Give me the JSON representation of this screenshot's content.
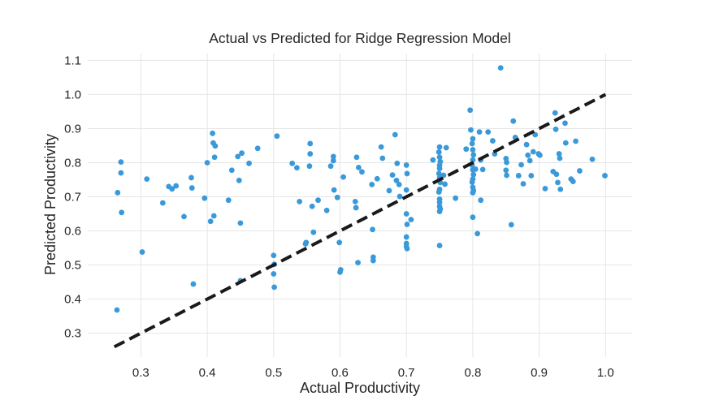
{
  "chart_data": {
    "type": "scatter",
    "title": "Actual vs Predicted for Ridge Regression Model",
    "xlabel": "Actual Productivity",
    "ylabel": "Predicted Productivity",
    "xlim": [
      0.22,
      1.04
    ],
    "ylim": [
      0.23,
      1.12
    ],
    "xticks": [
      0.3,
      0.4,
      0.5,
      0.6,
      0.7,
      0.8,
      0.9,
      1.0
    ],
    "xtick_labels": [
      "0.3",
      "0.4",
      "0.5",
      "0.6",
      "0.7",
      "0.8",
      "0.9",
      "1.0"
    ],
    "yticks": [
      0.3,
      0.4,
      0.5,
      0.6,
      0.7,
      0.8,
      0.9,
      1.0,
      1.1
    ],
    "ytick_labels": [
      "0.3",
      "0.4",
      "0.5",
      "0.6",
      "0.7",
      "0.8",
      "0.9",
      "1.0",
      "1.1"
    ],
    "grid": true,
    "point_color": "#3a9ad9",
    "reference_line": {
      "x": [
        0.26,
        1.0
      ],
      "y": [
        0.26,
        1.0
      ],
      "style": "dashed",
      "color": "#1a1a1a"
    },
    "points": [
      [
        0.264,
        0.368
      ],
      [
        0.265,
        0.712
      ],
      [
        0.27,
        0.802
      ],
      [
        0.27,
        0.77
      ],
      [
        0.271,
        0.654
      ],
      [
        0.302,
        0.538
      ],
      [
        0.309,
        0.752
      ],
      [
        0.333,
        0.682
      ],
      [
        0.342,
        0.73
      ],
      [
        0.347,
        0.723
      ],
      [
        0.353,
        0.732
      ],
      [
        0.365,
        0.642
      ],
      [
        0.376,
        0.756
      ],
      [
        0.377,
        0.726
      ],
      [
        0.379,
        0.444
      ],
      [
        0.396,
        0.696
      ],
      [
        0.4,
        0.8
      ],
      [
        0.405,
        0.628
      ],
      [
        0.408,
        0.886
      ],
      [
        0.409,
        0.858
      ],
      [
        0.41,
        0.644
      ],
      [
        0.411,
        0.816
      ],
      [
        0.412,
        0.849
      ],
      [
        0.432,
        0.69
      ],
      [
        0.437,
        0.778
      ],
      [
        0.446,
        0.818
      ],
      [
        0.448,
        0.748
      ],
      [
        0.45,
        0.623
      ],
      [
        0.452,
        0.828
      ],
      [
        0.45,
        0.454
      ],
      [
        0.463,
        0.798
      ],
      [
        0.476,
        0.842
      ],
      [
        0.5,
        0.528
      ],
      [
        0.501,
        0.502
      ],
      [
        0.5,
        0.474
      ],
      [
        0.501,
        0.435
      ],
      [
        0.505,
        0.878
      ],
      [
        0.528,
        0.798
      ],
      [
        0.535,
        0.785
      ],
      [
        0.539,
        0.686
      ],
      [
        0.548,
        0.562
      ],
      [
        0.549,
        0.566
      ],
      [
        0.554,
        0.79
      ],
      [
        0.555,
        0.856
      ],
      [
        0.555,
        0.826
      ],
      [
        0.558,
        0.672
      ],
      [
        0.56,
        0.596
      ],
      [
        0.567,
        0.69
      ],
      [
        0.58,
        0.66
      ],
      [
        0.586,
        0.79
      ],
      [
        0.59,
        0.818
      ],
      [
        0.59,
        0.806
      ],
      [
        0.591,
        0.72
      ],
      [
        0.596,
        0.698
      ],
      [
        0.599,
        0.566
      ],
      [
        0.601,
        0.486
      ],
      [
        0.6,
        0.479
      ],
      [
        0.605,
        0.758
      ],
      [
        0.623,
        0.686
      ],
      [
        0.624,
        0.668
      ],
      [
        0.625,
        0.816
      ],
      [
        0.627,
        0.507
      ],
      [
        0.628,
        0.786
      ],
      [
        0.633,
        0.773
      ],
      [
        0.648,
        0.736
      ],
      [
        0.649,
        0.604
      ],
      [
        0.65,
        0.523
      ],
      [
        0.65,
        0.513
      ],
      [
        0.656,
        0.753
      ],
      [
        0.662,
        0.846
      ],
      [
        0.664,
        0.813
      ],
      [
        0.674,
        0.718
      ],
      [
        0.679,
        0.764
      ],
      [
        0.683,
        0.882
      ],
      [
        0.685,
        0.748
      ],
      [
        0.686,
        0.798
      ],
      [
        0.689,
        0.736
      ],
      [
        0.69,
        0.701
      ],
      [
        0.7,
        0.793
      ],
      [
        0.701,
        0.768
      ],
      [
        0.7,
        0.72
      ],
      [
        0.7,
        0.65
      ],
      [
        0.701,
        0.619
      ],
      [
        0.7,
        0.582
      ],
      [
        0.7,
        0.563
      ],
      [
        0.7,
        0.554
      ],
      [
        0.701,
        0.548
      ],
      [
        0.707,
        0.633
      ],
      [
        0.74,
        0.808
      ],
      [
        0.75,
        0.846
      ],
      [
        0.749,
        0.831
      ],
      [
        0.75,
        0.816
      ],
      [
        0.751,
        0.803
      ],
      [
        0.75,
        0.792
      ],
      [
        0.75,
        0.783
      ],
      [
        0.749,
        0.768
      ],
      [
        0.75,
        0.756
      ],
      [
        0.751,
        0.742
      ],
      [
        0.75,
        0.722
      ],
      [
        0.749,
        0.714
      ],
      [
        0.75,
        0.693
      ],
      [
        0.75,
        0.684
      ],
      [
        0.75,
        0.672
      ],
      [
        0.751,
        0.664
      ],
      [
        0.75,
        0.657
      ],
      [
        0.75,
        0.557
      ],
      [
        0.756,
        0.763
      ],
      [
        0.758,
        0.737
      ],
      [
        0.76,
        0.844
      ],
      [
        0.774,
        0.696
      ],
      [
        0.79,
        0.84
      ],
      [
        0.796,
        0.954
      ],
      [
        0.797,
        0.896
      ],
      [
        0.8,
        0.87
      ],
      [
        0.799,
        0.856
      ],
      [
        0.8,
        0.838
      ],
      [
        0.801,
        0.823
      ],
      [
        0.8,
        0.808
      ],
      [
        0.799,
        0.793
      ],
      [
        0.8,
        0.779
      ],
      [
        0.801,
        0.765
      ],
      [
        0.8,
        0.752
      ],
      [
        0.799,
        0.743
      ],
      [
        0.8,
        0.728
      ],
      [
        0.801,
        0.718
      ],
      [
        0.8,
        0.712
      ],
      [
        0.8,
        0.64
      ],
      [
        0.804,
        0.781
      ],
      [
        0.807,
        0.592
      ],
      [
        0.81,
        0.89
      ],
      [
        0.812,
        0.808
      ],
      [
        0.812,
        0.69
      ],
      [
        0.815,
        0.78
      ],
      [
        0.823,
        0.89
      ],
      [
        0.83,
        0.864
      ],
      [
        0.833,
        0.826
      ],
      [
        0.842,
        1.078
      ],
      [
        0.85,
        0.812
      ],
      [
        0.851,
        0.801
      ],
      [
        0.85,
        0.778
      ],
      [
        0.851,
        0.763
      ],
      [
        0.858,
        0.618
      ],
      [
        0.861,
        0.922
      ],
      [
        0.864,
        0.874
      ],
      [
        0.869,
        0.762
      ],
      [
        0.873,
        0.794
      ],
      [
        0.876,
        0.738
      ],
      [
        0.881,
        0.853
      ],
      [
        0.883,
        0.822
      ],
      [
        0.886,
        0.806
      ],
      [
        0.888,
        0.762
      ],
      [
        0.891,
        0.832
      ],
      [
        0.894,
        0.882
      ],
      [
        0.899,
        0.826
      ],
      [
        0.901,
        0.822
      ],
      [
        0.909,
        0.724
      ],
      [
        0.921,
        0.774
      ],
      [
        0.924,
        0.946
      ],
      [
        0.925,
        0.898
      ],
      [
        0.926,
        0.766
      ],
      [
        0.928,
        0.742
      ],
      [
        0.93,
        0.826
      ],
      [
        0.931,
        0.813
      ],
      [
        0.932,
        0.722
      ],
      [
        0.939,
        0.916
      ],
      [
        0.94,
        0.858
      ],
      [
        0.948,
        0.752
      ],
      [
        0.951,
        0.745
      ],
      [
        0.955,
        0.863
      ],
      [
        0.961,
        0.776
      ],
      [
        0.98,
        0.81
      ],
      [
        0.999,
        0.762
      ]
    ]
  }
}
